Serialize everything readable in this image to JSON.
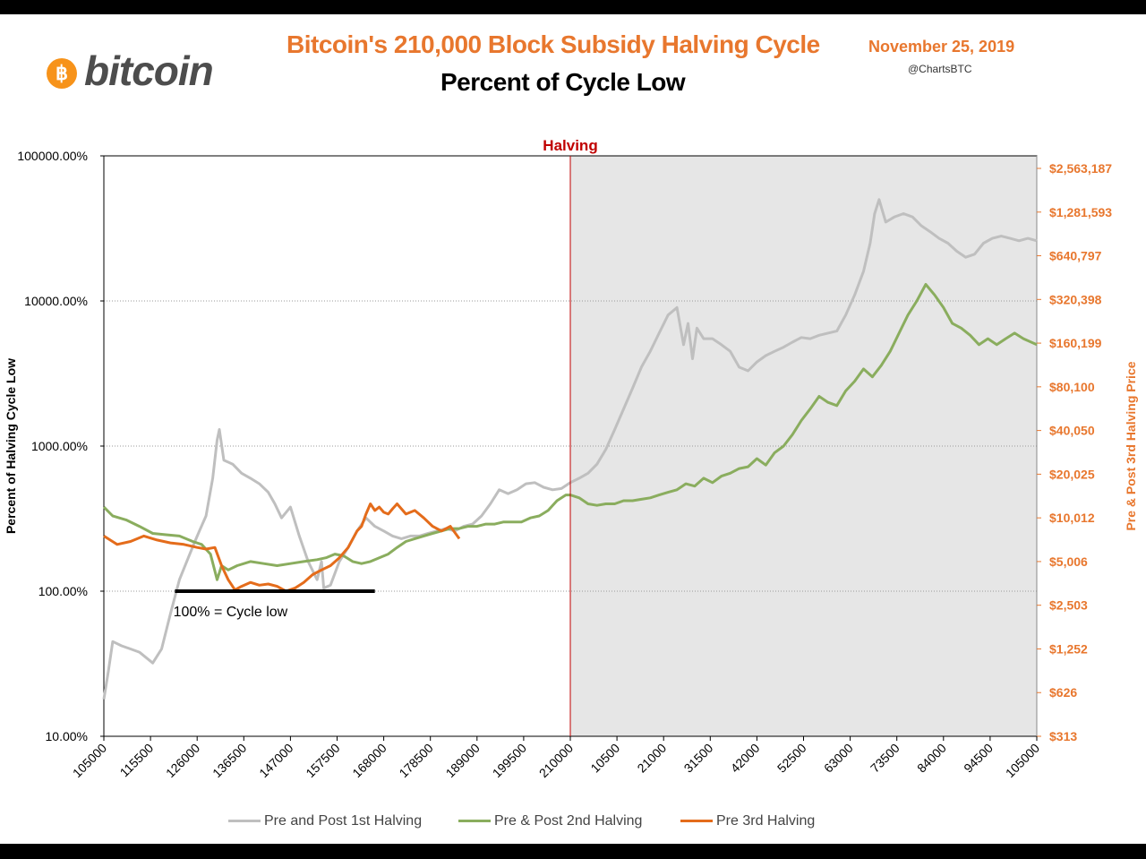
{
  "header": {
    "title": "Bitcoin's 210,000 Block Subsidy Halving Cycle",
    "subtitle": "Percent of Cycle Low",
    "date": "November 25, 2019",
    "handle": "@ChartsBTC",
    "logo_text": "bitcoin",
    "logo_symbol": "฿"
  },
  "colors": {
    "series1": "#bfbfbf",
    "series2": "#8aad5e",
    "series3": "#e46c1b",
    "halving_line": "#c00000",
    "shade": "#e6e6e6",
    "right_axis": "#e8772e",
    "baseline": "#000000"
  },
  "chart_data": {
    "type": "line",
    "title": "Bitcoin's 210,000 Block Subsidy Halving Cycle",
    "subtitle": "Percent of Cycle Low",
    "ylabel": "Percent of Halving Cycle Low",
    "ylabel_right": "Pre & Post 3rd Halving Price",
    "y_scale": "log",
    "ylim": [
      10,
      100000
    ],
    "y_ticks": [
      "100000.00%",
      "10000.00%",
      "1000.00%",
      "100.00%",
      "10.00%"
    ],
    "y_tick_values": [
      100000,
      10000,
      1000,
      100,
      10
    ],
    "y_right_ticks": [
      "$2,563,187",
      "$1,281,593",
      "$640,797",
      "$320,398",
      "$160,199",
      "$80,100",
      "$40,050",
      "$20,025",
      "$10,012",
      "$5,006",
      "$2,503",
      "$1,252",
      "$626",
      "$313"
    ],
    "x_ticks": [
      "105000",
      "115500",
      "126000",
      "136500",
      "147000",
      "157500",
      "168000",
      "178500",
      "189000",
      "199500",
      "210000",
      "10500",
      "21000",
      "31500",
      "42000",
      "52500",
      "63000",
      "73500",
      "84000",
      "94500",
      "105000"
    ],
    "x_range_blocks": [
      105000,
      315000
    ],
    "halving_block": 210000,
    "halving_label": "Halving",
    "baseline_label": "100% = Cycle low",
    "grid": "horizontal",
    "legend_position": "bottom",
    "series": [
      {
        "name": "Pre and Post 1st Halving",
        "x": [
          105000,
          106000,
          107000,
          109000,
          111000,
          113000,
          116000,
          118000,
          120000,
          122000,
          124000,
          125500,
          126500,
          128000,
          129500,
          130500,
          131000,
          132000,
          134000,
          136000,
          138000,
          140000,
          142000,
          143500,
          145000,
          147000,
          149000,
          151000,
          153000,
          154000,
          154500,
          156000,
          158000,
          160000,
          162000,
          164000,
          166000,
          168000,
          170000,
          172000,
          174000,
          176000,
          178000,
          180000,
          182000,
          184000,
          186000,
          188000,
          190000,
          192000,
          194000,
          196000,
          198000,
          200000,
          202000,
          204000,
          206000,
          208000,
          210000,
          212000,
          214000,
          216000,
          218000,
          220000,
          222000,
          224000,
          226000,
          228000,
          230000,
          232000,
          234000,
          235500,
          236500,
          237500,
          238500,
          240000,
          242000,
          244000,
          246000,
          248000,
          250000,
          252000,
          254000,
          256000,
          258000,
          260000,
          262000,
          264000,
          266000,
          268000,
          270000,
          272000,
          274000,
          276000,
          277500,
          278500,
          279500,
          281000,
          283000,
          285000,
          287000,
          289000,
          291000,
          293000,
          295000,
          297000,
          299000,
          301000,
          303000,
          305000,
          307000,
          309000,
          311000,
          313000,
          315000
        ],
        "values": [
          18,
          28,
          45,
          42,
          40,
          38,
          32,
          40,
          70,
          120,
          170,
          220,
          260,
          330,
          600,
          1100,
          1300,
          800,
          750,
          650,
          600,
          550,
          480,
          400,
          320,
          380,
          240,
          160,
          120,
          160,
          105,
          110,
          160,
          200,
          260,
          320,
          280,
          260,
          240,
          230,
          240,
          240,
          250,
          260,
          270,
          260,
          280,
          290,
          330,
          400,
          500,
          470,
          500,
          550,
          560,
          520,
          500,
          510,
          560,
          600,
          650,
          750,
          950,
          1300,
          1800,
          2500,
          3500,
          4500,
          6000,
          8000,
          9000,
          5000,
          7000,
          4000,
          6500,
          5500,
          5500,
          5000,
          4500,
          3500,
          3300,
          3800,
          4200,
          4500,
          4800,
          5200,
          5600,
          5500,
          5800,
          6000,
          6200,
          8000,
          11000,
          16000,
          25000,
          40000,
          50000,
          35000,
          38000,
          40000,
          38000,
          33000,
          30000,
          27000,
          25000,
          22000,
          20000,
          21000,
          25000,
          27000,
          28000,
          27000,
          26000,
          27000,
          26000
        ]
      },
      {
        "name": "Pre & Post 2nd Halving",
        "x": [
          105000,
          107000,
          110000,
          113000,
          116000,
          119000,
          122000,
          125000,
          127000,
          129000,
          130500,
          131500,
          133000,
          135000,
          138000,
          141000,
          144000,
          147000,
          150000,
          153000,
          155000,
          157000,
          159000,
          161000,
          163000,
          165000,
          167000,
          169000,
          171000,
          173000,
          175000,
          177000,
          179000,
          181000,
          183000,
          185000,
          187000,
          189000,
          191000,
          193000,
          195000,
          197000,
          199000,
          201000,
          203000,
          205000,
          207000,
          209000,
          210000,
          212000,
          214000,
          216000,
          218000,
          220000,
          222000,
          224000,
          226000,
          228000,
          230000,
          232000,
          234000,
          236000,
          238000,
          240000,
          242000,
          244000,
          246000,
          248000,
          250000,
          252000,
          254000,
          256000,
          258000,
          260000,
          262000,
          264000,
          266000,
          268000,
          270000,
          272000,
          274000,
          276000,
          278000,
          280000,
          282000,
          284000,
          286000,
          288000,
          290000,
          292000,
          294000,
          296000,
          298000,
          300000,
          302000,
          304000,
          306000,
          308000,
          310000,
          312000,
          315000
        ],
        "values": [
          380,
          330,
          310,
          280,
          250,
          245,
          240,
          220,
          210,
          180,
          120,
          150,
          140,
          150,
          160,
          155,
          150,
          155,
          160,
          165,
          170,
          180,
          175,
          160,
          155,
          160,
          170,
          180,
          200,
          220,
          230,
          240,
          250,
          260,
          270,
          270,
          280,
          280,
          290,
          290,
          300,
          300,
          300,
          320,
          330,
          360,
          420,
          460,
          460,
          440,
          400,
          390,
          400,
          400,
          420,
          420,
          430,
          440,
          460,
          480,
          500,
          550,
          530,
          600,
          560,
          620,
          650,
          700,
          720,
          820,
          740,
          900,
          1000,
          1200,
          1500,
          1800,
          2200,
          2000,
          1900,
          2400,
          2800,
          3400,
          3000,
          3600,
          4500,
          6000,
          8000,
          10000,
          13000,
          11000,
          9000,
          7000,
          6500,
          5800,
          5000,
          5500,
          5000,
          5500,
          6000,
          5500,
          5000
        ]
      },
      {
        "name": "Pre 3rd Halving",
        "x": [
          105000,
          108000,
          111000,
          114000,
          117000,
          120000,
          123000,
          126000,
          128000,
          130000,
          131500,
          133000,
          134500,
          136000,
          138000,
          140000,
          142000,
          144000,
          146000,
          148000,
          150000,
          152000,
          154000,
          156000,
          158000,
          160000,
          162000,
          163000,
          164000,
          165000,
          166000,
          167000,
          168000,
          169000,
          170000,
          171000,
          173000,
          175000,
          177000,
          179000,
          181000,
          183000,
          185000
        ],
        "values": [
          240,
          210,
          220,
          240,
          225,
          215,
          210,
          200,
          195,
          200,
          150,
          120,
          102,
          108,
          115,
          110,
          112,
          108,
          100,
          105,
          115,
          130,
          140,
          150,
          170,
          200,
          260,
          280,
          340,
          400,
          360,
          380,
          350,
          340,
          370,
          400,
          340,
          360,
          320,
          280,
          260,
          280,
          230
        ]
      }
    ]
  }
}
